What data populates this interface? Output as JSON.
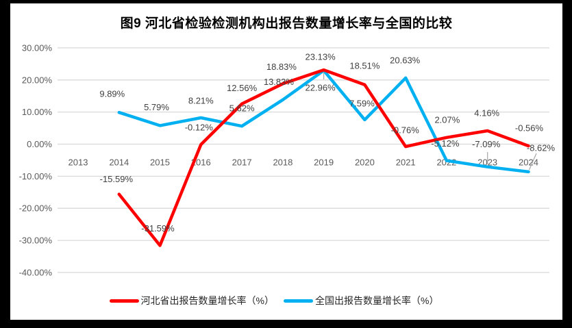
{
  "colors": {
    "frame": "#000000",
    "chart_background": "#FFFFFF",
    "gridline": "#D9D9D9",
    "axis_text": "#595959",
    "data_label_text": "#404040",
    "leader_line": "#A6A6A6",
    "title_text": "#000000",
    "legend_text": "#262626"
  },
  "chart_data": {
    "type": "line",
    "title": "图9 河北省检验检测机构出报告数量增长率与全国的比较",
    "categories": [
      "2013",
      "2014",
      "2015",
      "2016",
      "2017",
      "2018",
      "2019",
      "2020",
      "2021",
      "2022",
      "2023",
      "2024"
    ],
    "series": [
      {
        "name": "河北省出报告数量增长率（%）",
        "color": "#FF0000",
        "values": [
          null,
          -15.59,
          -31.59,
          -0.12,
          12.56,
          18.83,
          23.13,
          18.51,
          -0.76,
          2.07,
          4.16,
          -0.56
        ],
        "labels": [
          null,
          "-15.59%",
          "-31.59%",
          "-0.12%",
          "12.56%",
          "18.83%",
          "23.13%",
          "18.51%",
          "-0.76%",
          "2.07%",
          "4.16%",
          "-0.56%"
        ]
      },
      {
        "name": "全国出报告数量增长率（%）",
        "color": "#00B0F0",
        "values": [
          null,
          9.89,
          5.79,
          8.21,
          5.62,
          13.83,
          22.96,
          7.59,
          20.63,
          -5.12,
          -7.09,
          -8.62
        ],
        "labels": [
          null,
          "9.89%",
          "5.79%",
          "8.21%",
          "5.62%",
          "13.83%",
          "22.96%",
          "7.59%",
          "20.63%",
          "-5.12%",
          "-7.09%",
          "-8.62%"
        ]
      }
    ],
    "y_axis": {
      "tick_labels": [
        "30.00%",
        "20.00%",
        "10.00%",
        "0.00%",
        "-10.00%",
        "-20.00%",
        "-30.00%",
        "-40.00%"
      ],
      "tick_values": [
        30,
        20,
        10,
        0,
        -10,
        -20,
        -30,
        -40
      ],
      "min": -40,
      "max": 30
    },
    "x_axis": {
      "label_position": "below-zero-line"
    },
    "grid": true,
    "legend_position": "bottom"
  }
}
